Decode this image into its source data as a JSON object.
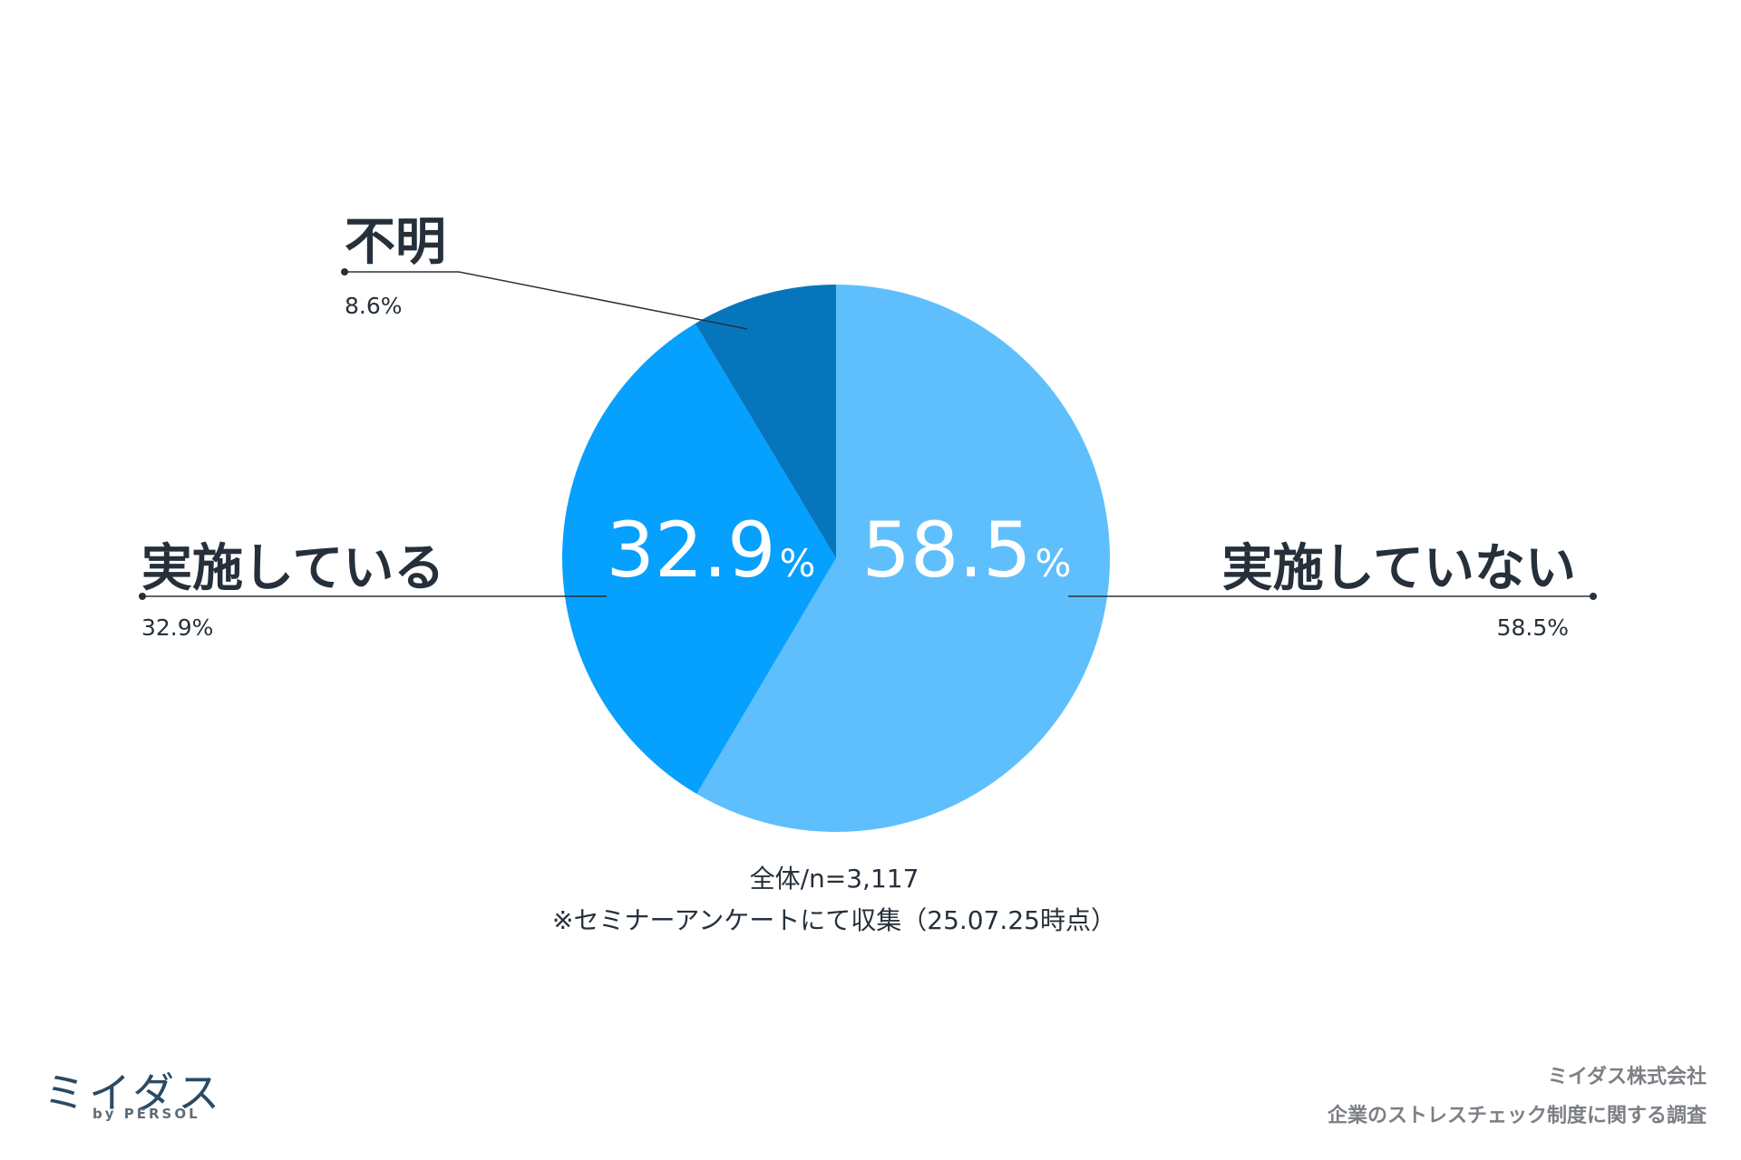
{
  "chart_data": {
    "type": "pie",
    "categories": [
      "実施していない",
      "実施している",
      "不明"
    ],
    "values": [
      58.5,
      32.9,
      8.6
    ],
    "value_labels": [
      "58.5%",
      "32.9%",
      "8.6%"
    ],
    "inner_labels": [
      {
        "num": "58.5",
        "unit": "%"
      },
      {
        "num": "32.9",
        "unit": "%"
      },
      null
    ],
    "colors": [
      "#5fbffd",
      "#06a0fe",
      "#0676bc"
    ],
    "start": "12 o'clock",
    "direction": "clockwise"
  },
  "note_lines": [
    "全体/n=3,117",
    "※セミナーアンケートにて収集（25.07.25時点）"
  ],
  "footer": {
    "company": "ミイダス株式会社",
    "survey_title": "企業のストレスチェック制度に関する調査"
  },
  "logo": {
    "wordmark": "ミイダス",
    "byline": "by PERSOL"
  }
}
